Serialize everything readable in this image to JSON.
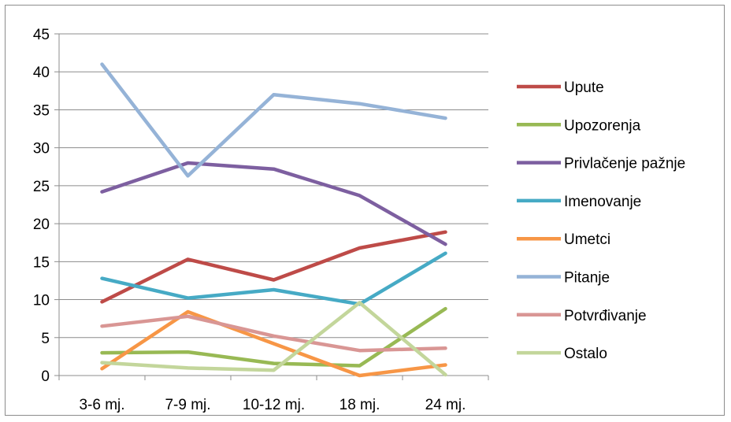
{
  "chart_data": {
    "type": "line",
    "title": "",
    "xlabel": "",
    "ylabel": "",
    "categories": [
      "3-6 mj.",
      "7-9 mj.",
      "10-12 mj.",
      "18 mj.",
      "24 mj."
    ],
    "ylim": [
      0,
      45
    ],
    "yticks": [
      0,
      5,
      10,
      15,
      20,
      25,
      30,
      35,
      40,
      45
    ],
    "grid": "horizontal",
    "legend_position": "right",
    "series": [
      {
        "name": "Upute",
        "color": "#be4b48",
        "values": [
          9.7,
          15.3,
          12.6,
          16.8,
          18.9
        ]
      },
      {
        "name": "Upozorenja",
        "color": "#98b954",
        "values": [
          3.0,
          3.1,
          1.6,
          1.3,
          8.8
        ]
      },
      {
        "name": "Privlačenje pažnje",
        "color": "#7d5fa0",
        "values": [
          24.2,
          28.0,
          27.2,
          23.7,
          17.3
        ]
      },
      {
        "name": "Imenovanje",
        "color": "#46aac5",
        "values": [
          12.8,
          10.2,
          11.3,
          9.4,
          16.1
        ]
      },
      {
        "name": "Umetci",
        "color": "#f79646",
        "values": [
          0.9,
          8.4,
          4.2,
          0.0,
          1.4
        ]
      },
      {
        "name": "Pitanje",
        "color": "#95b3d7",
        "values": [
          41.0,
          26.3,
          37.0,
          35.8,
          33.9
        ]
      },
      {
        "name": "Potvrđivanje",
        "color": "#d99694",
        "values": [
          6.5,
          7.8,
          5.2,
          3.3,
          3.6
        ]
      },
      {
        "name": "Ostalo",
        "color": "#c3d69b",
        "values": [
          1.7,
          1.0,
          0.7,
          9.6,
          0.1
        ]
      }
    ]
  }
}
